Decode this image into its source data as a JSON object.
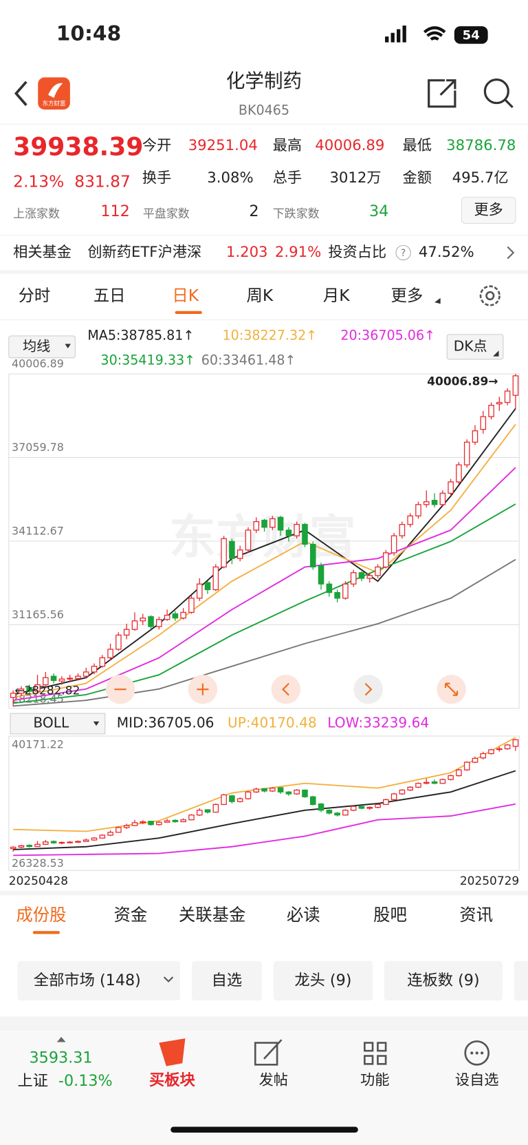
{
  "status_bar": {
    "time": "10:48",
    "battery": "54"
  },
  "header": {
    "logo_text": "东方财富",
    "title": "化学制药",
    "code": "BK0465"
  },
  "quote": {
    "price": 39938.39,
    "change_pct": "2.13%",
    "change": 831.87,
    "open_label": "今开",
    "open": 39251.04,
    "high_label": "最高",
    "high": 40006.89,
    "low_label": "最低",
    "low": 38786.78,
    "turnover_label": "换手",
    "turnover": "3.08%",
    "volume_label": "总手",
    "volume": "3012万",
    "amount_label": "金额",
    "amount": "495.7亿",
    "up_label": "上涨家数",
    "up_count": 112,
    "flat_label": "平盘家数",
    "flat_count": 2,
    "down_label": "下跌家数",
    "down_count": 34,
    "more_button": "更多"
  },
  "fund": {
    "label": "相关基金",
    "name": "创新药ETF沪港深",
    "price": 1.203,
    "change": "2.91%",
    "ratio_label": "投资占比",
    "help": "?",
    "ratio": "47.52%"
  },
  "tabs": [
    "分时",
    "五日",
    "日K",
    "周K",
    "月K",
    "更多"
  ],
  "chart_data": {
    "type": "candlestick",
    "indicator_button": "均线",
    "dk_button": "DK点",
    "ylim": [
      28218.45,
      40006.89
    ],
    "yticks": [
      28218.45,
      31165.56,
      34112.67,
      37059.78,
      40006.89
    ],
    "grid": true,
    "high_marker": "40006.89→",
    "low_marker": "←28282.82",
    "watermark": "东方财富",
    "up_color": "#e8262b",
    "down_color": "#1aa33a",
    "candles": [
      [
        28600,
        28850,
        28282.82,
        28750
      ],
      [
        28750,
        29000,
        28650,
        28900
      ],
      [
        28950,
        29050,
        28700,
        28820
      ],
      [
        28820,
        29400,
        28780,
        29050
      ],
      [
        29050,
        29500,
        28980,
        29300
      ],
      [
        29350,
        29450,
        29100,
        29200
      ],
      [
        29180,
        29350,
        29050,
        29250
      ],
      [
        29250,
        29400,
        29150,
        29280
      ],
      [
        29270,
        29450,
        29200,
        29350
      ],
      [
        29350,
        29650,
        29300,
        29500
      ],
      [
        29500,
        29800,
        29420,
        29700
      ],
      [
        29700,
        30100,
        29650,
        30000
      ],
      [
        30000,
        30500,
        29900,
        30300
      ],
      [
        30300,
        30900,
        30250,
        30800
      ],
      [
        30800,
        31200,
        30650,
        31000
      ],
      [
        31000,
        31600,
        30950,
        31300
      ],
      [
        31300,
        31550,
        31150,
        31400
      ],
      [
        31450,
        31500,
        31000,
        31100
      ],
      [
        31100,
        31450,
        31000,
        31350
      ],
      [
        31350,
        31700,
        31300,
        31500
      ],
      [
        31550,
        31650,
        31300,
        31400
      ],
      [
        31400,
        31750,
        31350,
        31600
      ],
      [
        31600,
        32200,
        31550,
        32100
      ],
      [
        32100,
        32800,
        32000,
        32600
      ],
      [
        32650,
        32700,
        32250,
        32400
      ],
      [
        32400,
        33300,
        32350,
        33200
      ],
      [
        33200,
        34300,
        33150,
        34200
      ],
      [
        34100,
        34200,
        33300,
        33500
      ],
      [
        33500,
        33950,
        33400,
        33800
      ],
      [
        33800,
        34600,
        33700,
        34500
      ],
      [
        34500,
        34950,
        34400,
        34800
      ],
      [
        34850,
        34900,
        34450,
        34600
      ],
      [
        34600,
        35000,
        34500,
        34900
      ],
      [
        34950,
        35000,
        34300,
        34500
      ],
      [
        34500,
        34600,
        34100,
        34300
      ],
      [
        34300,
        34800,
        34200,
        34700
      ],
      [
        34700,
        34750,
        33900,
        34000
      ],
      [
        34000,
        34100,
        33100,
        33200
      ],
      [
        33250,
        33350,
        32400,
        32600
      ],
      [
        32600,
        32700,
        32150,
        32300
      ],
      [
        32300,
        32400,
        31950,
        32100
      ],
      [
        32100,
        32700,
        32050,
        32600
      ],
      [
        32600,
        33100,
        32500,
        33000
      ],
      [
        33000,
        33050,
        32700,
        32800
      ],
      [
        32800,
        33000,
        32650,
        32900
      ],
      [
        32900,
        33300,
        32800,
        33200
      ],
      [
        33200,
        33800,
        33150,
        33700
      ],
      [
        33700,
        34400,
        33600,
        34300
      ],
      [
        34300,
        34800,
        34200,
        34700
      ],
      [
        34700,
        35100,
        34600,
        35000
      ],
      [
        35000,
        35500,
        34900,
        35400
      ],
      [
        35400,
        35900,
        35300,
        35500
      ],
      [
        35550,
        35800,
        35300,
        35400
      ],
      [
        35400,
        35900,
        35350,
        35800
      ],
      [
        35800,
        36300,
        35700,
        36200
      ],
      [
        36200,
        36900,
        36100,
        36800
      ],
      [
        36800,
        37700,
        36700,
        37600
      ],
      [
        37600,
        38200,
        37500,
        38000
      ],
      [
        38050,
        38700,
        37900,
        38500
      ],
      [
        38500,
        39000,
        38400,
        38900
      ],
      [
        38950,
        39200,
        38700,
        39000
      ],
      [
        39000,
        39500,
        38900,
        39400
      ],
      [
        39251.04,
        40006.89,
        38786.78,
        39938.39
      ]
    ],
    "ma": [
      {
        "label": "MA5:38785.81↑",
        "color": "#222222",
        "x": [
          0,
          9,
          18,
          27,
          36,
          45,
          54,
          62
        ],
        "values": [
          28700,
          29300,
          31200,
          33500,
          34500,
          32700,
          35700,
          38785.81
        ]
      },
      {
        "label": "10:38227.32↑",
        "color": "#f5b041",
        "x": [
          0,
          9,
          18,
          27,
          36,
          45,
          54,
          62
        ],
        "values": [
          28600,
          29100,
          30800,
          32700,
          34100,
          33000,
          35200,
          38227.32
        ]
      },
      {
        "label": "20:36705.06↑",
        "color": "#e02ce0",
        "x": [
          0,
          9,
          18,
          27,
          36,
          45,
          54,
          62
        ],
        "values": [
          28500,
          28900,
          30000,
          31700,
          33200,
          33500,
          34500,
          36705.06
        ]
      },
      {
        "label": "30:35419.33↑",
        "color": "#1aa33a",
        "x": [
          0,
          9,
          18,
          27,
          36,
          45,
          54,
          62
        ],
        "values": [
          28400,
          28700,
          29400,
          30800,
          32000,
          33100,
          34100,
          35419.33
        ]
      },
      {
        "label": "60:33461.48↑",
        "color": "#777777",
        "x": [
          0,
          9,
          18,
          27,
          36,
          45,
          54,
          62
        ],
        "values": [
          28300,
          28500,
          28900,
          29700,
          30500,
          31200,
          32100,
          33461.48
        ]
      }
    ],
    "boll": {
      "button": "BOLL",
      "ylim": [
        26328.53,
        40171.22
      ],
      "yticks": [
        26328.53,
        40171.22
      ],
      "x_start": "20250428",
      "x_end": "20250729",
      "series": [
        {
          "label": "MID:36705.06",
          "color": "#222222",
          "x": [
            0,
            9,
            18,
            27,
            36,
            45,
            54,
            62
          ],
          "values": [
            28500,
            28800,
            29700,
            31200,
            32600,
            33300,
            34500,
            36705.06
          ]
        },
        {
          "label": "UP:40170.48",
          "color": "#f5b041",
          "x": [
            0,
            9,
            18,
            27,
            36,
            45,
            54,
            62
          ],
          "values": [
            30600,
            30400,
            31500,
            34400,
            35400,
            34900,
            36500,
            40170.48
          ]
        },
        {
          "label": "LOW:33239.64",
          "color": "#e02ce0",
          "x": [
            0,
            9,
            18,
            27,
            36,
            45,
            54,
            62
          ],
          "values": [
            27900,
            28000,
            28100,
            28800,
            29900,
            31600,
            32000,
            33239.64
          ]
        }
      ]
    }
  },
  "sections": {
    "tabs": [
      "成份股",
      "资金",
      "关联基金",
      "必读",
      "股吧",
      "资讯"
    ],
    "filters": [
      "全部市场 (148)",
      "自选",
      "龙头 (9)",
      "连板数 (9)"
    ]
  },
  "bottom_nav": {
    "index_value": 3593.31,
    "index_name": "上证",
    "index_change": "-0.13%",
    "items": [
      "买板块",
      "发帖",
      "功能",
      "设自选"
    ]
  }
}
